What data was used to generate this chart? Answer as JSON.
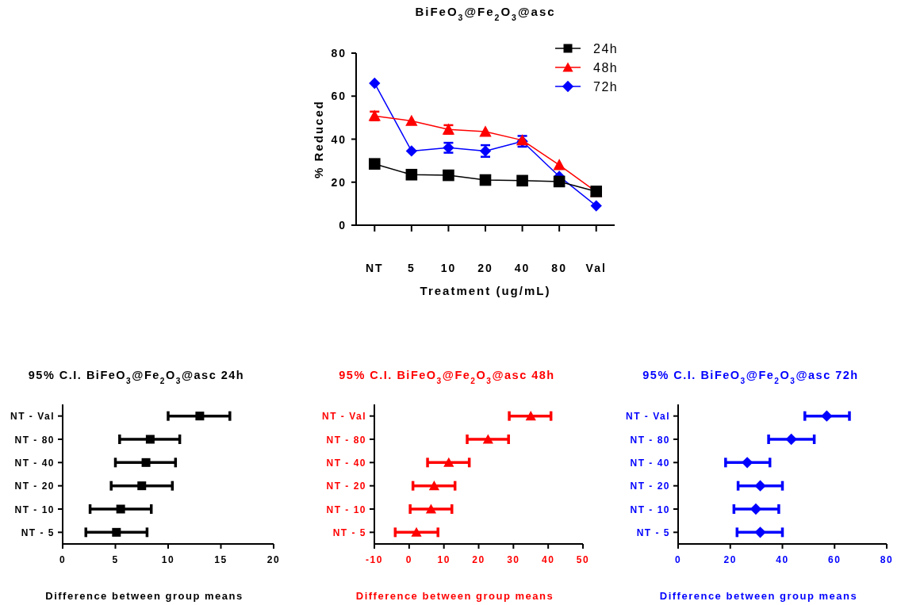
{
  "chart_data": [
    {
      "type": "line",
      "title": "BiFeO$_{3}$@Fe$_{2}$O$_{3}$@asc",
      "xlabel": "Treatment (ug/mL)",
      "ylabel": "% Reduced",
      "categories": [
        "NT",
        "5",
        "10",
        "20",
        "40",
        "80",
        "Val"
      ],
      "ylim": [
        0,
        80
      ],
      "yticks": [
        0,
        20,
        40,
        60,
        80
      ],
      "legend": "top right",
      "series": [
        {
          "name": "24h",
          "color": "#000000",
          "marker": "square",
          "values": [
            28.5,
            23.5,
            23.2,
            21,
            20.7,
            20.3,
            15.7
          ]
        },
        {
          "name": "48h",
          "color": "#ff0000",
          "marker": "triangle",
          "values": [
            50.8,
            48.5,
            44.5,
            43.5,
            39.5,
            28,
            15.5
          ],
          "errors": [
            2,
            null,
            2,
            null,
            null,
            null,
            null
          ]
        },
        {
          "name": "72h",
          "color": "#0000ff",
          "marker": "diamond",
          "values": [
            66,
            34.5,
            36,
            34.5,
            39,
            22.7,
            9
          ],
          "errors": [
            null,
            null,
            2.3,
            2.7,
            2.5,
            null,
            null
          ]
        }
      ]
    },
    {
      "type": "scatter",
      "orientation": "horizontal",
      "title": "95% C.I. BiFeO$_{3}$@Fe$_{2}$O$_{3}$@asc 24h",
      "xlabel": "Difference between group means",
      "categories": [
        "NT - Val",
        "NT - 80",
        "NT - 40",
        "NT - 20",
        "NT - 10",
        "NT - 5"
      ],
      "xlim": [
        0,
        20
      ],
      "xticks": [
        0,
        5,
        10,
        15,
        20
      ],
      "series": [
        {
          "color": "#000000",
          "marker": "square",
          "values": [
            13,
            8.3,
            7.9,
            7.5,
            5.5,
            5.1
          ],
          "errors": [
            [
              10,
              15.85
            ],
            [
              5.4,
              11.1
            ],
            [
              5,
              10.7
            ],
            [
              4.6,
              10.4
            ],
            [
              2.6,
              8.4
            ],
            [
              2.2,
              8
            ]
          ]
        }
      ]
    },
    {
      "type": "scatter",
      "orientation": "horizontal",
      "title": "95% C.I. BiFeO$_{3}$@Fe$_{2}$O$_{3}$@asc 48h",
      "xlabel": "Difference between group means",
      "categories": [
        "NT - Val",
        "NT - 80",
        "NT - 40",
        "NT - 20",
        "NT - 10",
        "NT - 5"
      ],
      "xlim": [
        -10,
        50
      ],
      "xticks": [
        -10,
        0,
        10,
        20,
        30,
        40,
        50
      ],
      "series": [
        {
          "color": "#ff0000",
          "marker": "triangle",
          "values": [
            35,
            22.7,
            11.4,
            7.2,
            6.3,
            2.1
          ],
          "errors": [
            [
              28.8,
              40.8
            ],
            [
              16.7,
              28.6
            ],
            [
              5.3,
              17.3
            ],
            [
              1.1,
              13.2
            ],
            [
              0.3,
              12.3
            ],
            [
              -4,
              8.3
            ]
          ]
        }
      ]
    },
    {
      "type": "scatter",
      "orientation": "horizontal",
      "title": "95% C.I. BiFeO$_{3}$@Fe$_{2}$O$_{3}$@asc 72h",
      "xlabel": "Difference between group means",
      "categories": [
        "NT - Val",
        "NT - 80",
        "NT - 40",
        "NT - 20",
        "NT - 10",
        "NT - 5"
      ],
      "xlim": [
        0,
        80
      ],
      "xticks": [
        0,
        20,
        40,
        60,
        80
      ],
      "series": [
        {
          "color": "#0000ff",
          "marker": "diamond",
          "values": [
            57,
            43.4,
            26.5,
            31.5,
            29.8,
            31.5
          ],
          "errors": [
            [
              48.6,
              65.7
            ],
            [
              34.7,
              52.2
            ],
            [
              18.2,
              35.2
            ],
            [
              23,
              40
            ],
            [
              21.4,
              38.6
            ],
            [
              22.6,
              40
            ]
          ]
        }
      ]
    }
  ]
}
